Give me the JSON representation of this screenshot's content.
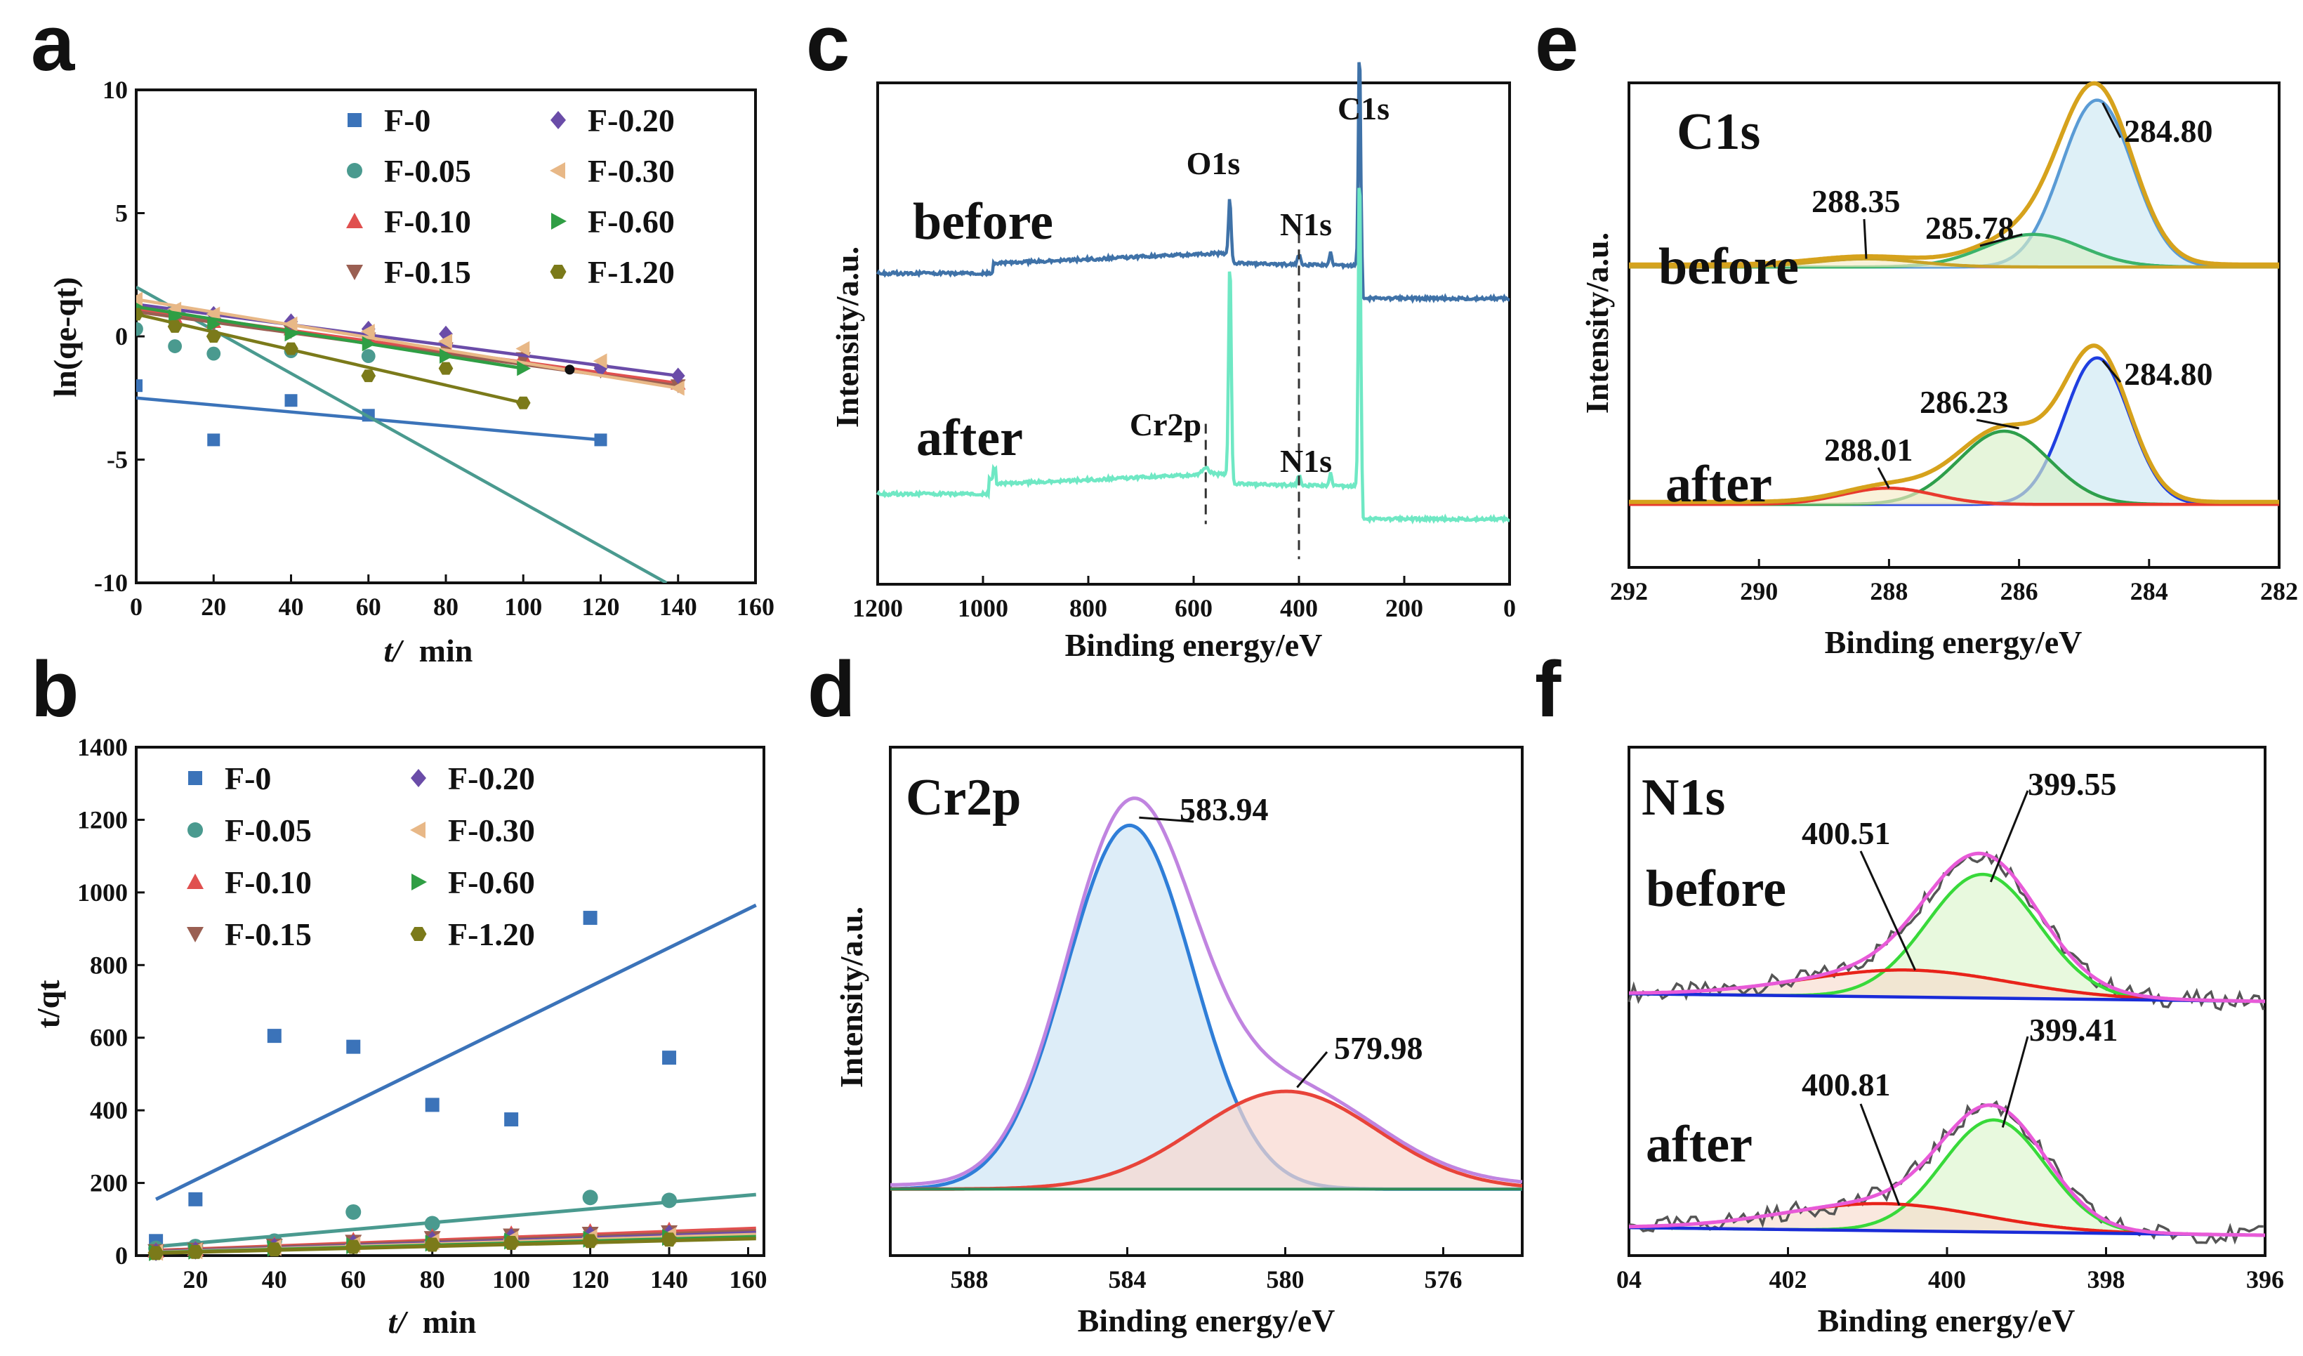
{
  "chart_data": [
    {
      "panel": "a",
      "type": "scatter",
      "xlabel": "t/min",
      "ylabel": "ln(qe-qt)",
      "xlim": [
        0,
        160
      ],
      "ylim": [
        -10,
        10
      ],
      "xticks": [
        "0",
        "20",
        "40",
        "60",
        "80",
        "100",
        "120",
        "140",
        "160"
      ],
      "yticks": [
        "10",
        "5",
        "0",
        "-5",
        "-10"
      ],
      "legend_position": "top-right",
      "series": [
        {
          "name": "F-0",
          "color": "#3b73b9",
          "marker": "square",
          "x": [
            0,
            20,
            40,
            60,
            120
          ],
          "y": [
            -2.0,
            -4.2,
            -2.6,
            -3.2,
            -4.2
          ],
          "fit": [
            [
              0,
              -2.5
            ],
            [
              120,
              -4.2
            ]
          ]
        },
        {
          "name": "F-0.05",
          "color": "#4a9a8f",
          "marker": "circle",
          "x": [
            0,
            10,
            20,
            40,
            60
          ],
          "y": [
            0.3,
            -0.4,
            -0.7,
            -0.6,
            -0.8
          ],
          "fit": [
            [
              0,
              2.0
            ],
            [
              137,
              -10
            ]
          ]
        },
        {
          "name": "F-0.10",
          "color": "#e0504f",
          "marker": "triangle-up",
          "x": [
            0,
            10,
            20,
            40,
            60,
            80,
            100,
            120,
            140
          ],
          "y": [
            1.1,
            0.8,
            0.6,
            0.3,
            0.0,
            -0.4,
            -0.8,
            -1.3,
            -1.9
          ],
          "fit": [
            [
              0,
              1.1
            ],
            [
              140,
              -1.9
            ]
          ]
        },
        {
          "name": "F-0.15",
          "color": "#9a5f52",
          "marker": "triangle-down",
          "x": [
            0,
            10,
            20,
            40,
            60,
            80,
            100,
            120,
            140
          ],
          "y": [
            1.0,
            0.7,
            0.5,
            0.2,
            -0.1,
            -0.5,
            -0.9,
            -1.4,
            -2.0
          ],
          "fit": [
            [
              0,
              1.0
            ],
            [
              140,
              -2.0
            ]
          ]
        },
        {
          "name": "F-0.20",
          "color": "#6a4ca8",
          "marker": "diamond",
          "x": [
            0,
            20,
            40,
            60,
            80,
            120,
            140
          ],
          "y": [
            1.3,
            0.9,
            0.6,
            0.3,
            0.1,
            -1.3,
            -1.6
          ],
          "fit": [
            [
              0,
              1.3
            ],
            [
              140,
              -1.6
            ]
          ]
        },
        {
          "name": "F-0.30",
          "color": "#e8b887",
          "marker": "triangle-left",
          "x": [
            0,
            10,
            20,
            40,
            60,
            80,
            100,
            120,
            140
          ],
          "y": [
            1.5,
            1.1,
            0.9,
            0.5,
            0.2,
            -0.2,
            -0.5,
            -1.0,
            -2.1
          ],
          "fit": [
            [
              0,
              1.5
            ],
            [
              140,
              -2.1
            ]
          ]
        },
        {
          "name": "F-0.60",
          "color": "#2f9e44",
          "marker": "triangle-right",
          "x": [
            0,
            10,
            20,
            40,
            60,
            80,
            100
          ],
          "y": [
            1.2,
            0.8,
            0.5,
            0.1,
            -0.3,
            -0.8,
            -1.3
          ],
          "fit": [
            [
              0,
              1.2
            ],
            [
              100,
              -1.3
            ]
          ]
        },
        {
          "name": "F-1.20",
          "color": "#7b7a1a",
          "marker": "hexagon",
          "x": [
            0,
            10,
            20,
            40,
            60,
            80,
            100
          ],
          "y": [
            0.9,
            0.4,
            0.0,
            -0.5,
            -1.6,
            -1.3,
            -2.7
          ],
          "fit": [
            [
              0,
              0.9
            ],
            [
              100,
              -2.7
            ]
          ]
        }
      ]
    },
    {
      "panel": "b",
      "type": "scatter",
      "xlabel": "t/min",
      "ylabel": "t/q_t",
      "xlim": [
        0,
        160
      ],
      "ylim": [
        0,
        1400
      ],
      "xticks": [
        "20",
        "40",
        "60",
        "80",
        "100",
        "120",
        "140",
        "160"
      ],
      "yticks": [
        "0",
        "200",
        "400",
        "600",
        "800",
        "1000",
        "1200",
        "1400"
      ],
      "legend_position": "top-left",
      "series": [
        {
          "name": "F-0",
          "color": "#3b73b9",
          "marker": "square",
          "x": [
            10,
            20,
            40,
            60,
            80,
            100,
            120,
            140
          ],
          "y": [
            40,
            155,
            605,
            575,
            415,
            375,
            930,
            545
          ],
          "fit": [
            [
              10,
              155
            ],
            [
              162,
              965
            ]
          ]
        },
        {
          "name": "F-0.05",
          "color": "#4a9a8f",
          "marker": "circle",
          "x": [
            10,
            20,
            40,
            60,
            80,
            100,
            120,
            140
          ],
          "y": [
            20,
            25,
            40,
            120,
            88,
            50,
            160,
            152
          ],
          "fit": [
            [
              10,
              25
            ],
            [
              162,
              168
            ]
          ]
        },
        {
          "name": "F-0.10",
          "color": "#e0504f",
          "marker": "triangle-up",
          "x": [
            10,
            20,
            40,
            60,
            80,
            100,
            120,
            140
          ],
          "y": [
            14,
            18,
            30,
            42,
            52,
            60,
            66,
            70
          ],
          "fit": [
            [
              10,
              14
            ],
            [
              162,
              75
            ]
          ]
        },
        {
          "name": "F-0.15",
          "color": "#9a5f52",
          "marker": "triangle-down",
          "x": [
            10,
            20,
            40,
            60,
            80,
            100,
            120,
            140
          ],
          "y": [
            12,
            16,
            27,
            38,
            48,
            55,
            60,
            64
          ],
          "fit": [
            [
              10,
              12
            ],
            [
              162,
              68
            ]
          ]
        },
        {
          "name": "F-0.20",
          "color": "#6a4ca8",
          "marker": "diamond",
          "x": [
            10,
            20,
            40,
            60,
            80,
            100,
            120,
            140
          ],
          "y": [
            10,
            14,
            24,
            33,
            42,
            50,
            56,
            60
          ],
          "fit": [
            [
              10,
              10
            ],
            [
              162,
              63
            ]
          ]
        },
        {
          "name": "F-0.30",
          "color": "#e8b887",
          "marker": "triangle-left",
          "x": [
            10,
            20,
            40,
            60,
            80,
            100,
            120,
            140
          ],
          "y": [
            9,
            13,
            22,
            30,
            38,
            45,
            50,
            55
          ],
          "fit": [
            [
              10,
              9
            ],
            [
              162,
              58
            ]
          ]
        },
        {
          "name": "F-0.60",
          "color": "#2f9e44",
          "marker": "triangle-right",
          "x": [
            10,
            20,
            40,
            60,
            80,
            100,
            120,
            140
          ],
          "y": [
            8,
            12,
            20,
            27,
            34,
            40,
            45,
            50
          ],
          "fit": [
            [
              10,
              8
            ],
            [
              162,
              52
            ]
          ]
        },
        {
          "name": "F-1.20",
          "color": "#7b7a1a",
          "marker": "hexagon",
          "x": [
            10,
            20,
            40,
            60,
            80,
            100,
            120,
            140
          ],
          "y": [
            7,
            10,
            17,
            24,
            30,
            35,
            40,
            44
          ],
          "fit": [
            [
              10,
              7
            ],
            [
              162,
              47
            ]
          ]
        }
      ]
    },
    {
      "panel": "c",
      "type": "line",
      "xlabel": "Binding energy/eV",
      "ylabel": "Intensity/a.u.",
      "xlim": [
        1200,
        0
      ],
      "xticks": [
        "1200",
        "1000",
        "800",
        "600",
        "400",
        "200",
        "0"
      ],
      "curve_labels": [
        "before",
        "after"
      ],
      "series": [
        {
          "name": "before",
          "color": "#3f72a8",
          "baseline": 0.62
        },
        {
          "name": "after",
          "color": "#6fe8c4",
          "baseline": 0.18
        }
      ],
      "annotations": [
        "O1s",
        "C1s",
        "N1s",
        "Cr2p",
        "N1s"
      ]
    },
    {
      "panel": "d",
      "type": "area",
      "title": "Cr2p",
      "xlabel": "Binding energy/eV",
      "ylabel": "Intensity/a.u.",
      "xlim": [
        590,
        574
      ],
      "xticks": [
        "588",
        "584",
        "580",
        "576"
      ],
      "peaks": [
        {
          "center": 583.94,
          "height": 0.93,
          "width": 1.6,
          "color": "#2f7ed8",
          "fill": "#cfe6f5"
        },
        {
          "center": 579.98,
          "height": 0.25,
          "width": 2.3,
          "color": "#e8443a",
          "fill": "#f8d7cf"
        }
      ],
      "envelope_color": "#c084e0",
      "labels": [
        "583.94",
        "579.98"
      ]
    },
    {
      "panel": "e",
      "type": "area",
      "title": "C1s",
      "xlabel": "Binding energy/eV",
      "ylabel": "Intensity/a.u.",
      "xlim": [
        292,
        282
      ],
      "xticks": [
        "292",
        "290",
        "288",
        "286",
        "284",
        "282"
      ],
      "curve_labels": [
        "before",
        "after"
      ],
      "series": [
        {
          "name": "before",
          "peaks": [
            {
              "center": 284.8,
              "height": 0.82,
              "width": 0.55,
              "color": "#5a9bd5"
            },
            {
              "center": 285.78,
              "height": 0.16,
              "width": 0.75,
              "color": "#3bb36b"
            },
            {
              "center": 288.35,
              "height": 0.04,
              "width": 0.8,
              "color": "#c9a227"
            }
          ],
          "labels": [
            "284.80",
            "285.78",
            "288.35"
          ]
        },
        {
          "name": "after",
          "peaks": [
            {
              "center": 284.8,
              "height": 0.72,
              "width": 0.5,
              "color": "#1f3fe0"
            },
            {
              "center": 286.23,
              "height": 0.36,
              "width": 0.7,
              "color": "#2e9f4b"
            },
            {
              "center": 288.01,
              "height": 0.08,
              "width": 0.7,
              "color": "#e83a2e"
            }
          ],
          "labels": [
            "284.80",
            "286.23",
            "288.01"
          ]
        }
      ],
      "envelope_color": "#d6a21c"
    },
    {
      "panel": "f",
      "type": "area",
      "title": "N1s",
      "xlabel": "Binding energy/eV",
      "ylabel": "",
      "xlim": [
        404,
        396
      ],
      "xticks": [
        "04",
        "402",
        "400",
        "398",
        "396"
      ],
      "curve_labels": [
        "before",
        "after"
      ],
      "series": [
        {
          "name": "before",
          "peaks": [
            {
              "center": 399.55,
              "height": 0.64,
              "width": 0.7,
              "color": "#38d93a"
            },
            {
              "center": 400.51,
              "height": 0.14,
              "width": 1.3,
              "color": "#e8231a"
            }
          ],
          "labels": [
            "399.55",
            "400.51"
          ]
        },
        {
          "name": "after",
          "peaks": [
            {
              "center": 399.41,
              "height": 0.58,
              "width": 0.65,
              "color": "#38d93a"
            },
            {
              "center": 400.81,
              "height": 0.14,
              "width": 1.25,
              "color": "#e8231a"
            }
          ],
          "labels": [
            "399.41",
            "400.81"
          ]
        }
      ],
      "envelope_color": "#e85ad8"
    }
  ]
}
